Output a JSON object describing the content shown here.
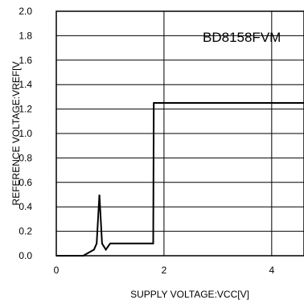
{
  "chart_data": {
    "type": "line",
    "title": "",
    "annotation": "BD8158FVM",
    "xlabel": "SUPPLY VOLTAGE:VCC[V]",
    "ylabel": "REFERENCE VOLTAGE:VREF[V",
    "xlim": [
      0,
      4.6
    ],
    "ylim": [
      0,
      2.0
    ],
    "x_ticks": [
      0,
      2,
      4
    ],
    "x_tick_labels": [
      "0",
      "2",
      "4"
    ],
    "y_ticks": [
      0,
      0.2,
      0.4,
      0.6,
      0.8,
      1.0,
      1.2,
      1.4,
      1.6,
      1.8,
      2.0
    ],
    "y_tick_labels": [
      "0.0",
      "0.2",
      "0.4",
      "0.6",
      "0.8",
      "1.0",
      "1.2",
      "1.4",
      "1.6",
      "1.8",
      "2.0"
    ],
    "grid": {
      "horizontal": true,
      "vertical": true
    },
    "series": [
      {
        "x": [
          0,
          0.5,
          0.7,
          0.75,
          0.8,
          0.85,
          0.92,
          1.0,
          1.8,
          1.81,
          4.6
        ],
        "y": [
          0,
          0,
          0.05,
          0.1,
          0.5,
          0.1,
          0.05,
          0.1,
          0.1,
          1.25,
          1.25
        ]
      }
    ]
  }
}
